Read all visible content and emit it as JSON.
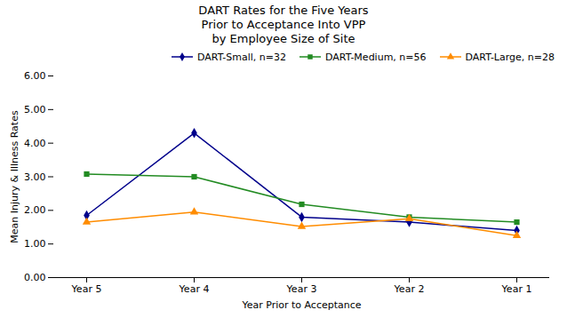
{
  "chart_data": {
    "type": "line",
    "title": [
      "DART Rates for the Five Years",
      "Prior to Acceptance Into VPP",
      "by Employee Size of Site"
    ],
    "xlabel": "Year Prior to Acceptance",
    "ylabel": "Mean Injury & Illness Rates",
    "categories": [
      "Year 5",
      "Year 4",
      "Year 3",
      "Year 2",
      "Year 1"
    ],
    "series": [
      {
        "name": "DART-Small, n=32",
        "color": "#00008B",
        "marker": "diamond",
        "values": [
          1.85,
          4.3,
          1.8,
          1.65,
          1.4
        ]
      },
      {
        "name": "DART-Medium, n=56",
        "color": "#228B22",
        "marker": "square",
        "values": [
          3.08,
          3.0,
          2.18,
          1.8,
          1.65
        ]
      },
      {
        "name": "DART-Large, n=28",
        "color": "#FF8C00",
        "marker": "triangle",
        "values": [
          1.65,
          1.95,
          1.52,
          1.75,
          1.25
        ]
      }
    ],
    "ylim": [
      0.0,
      6.0
    ],
    "yticks": [
      {
        "value": 0.0,
        "label": "0.00"
      },
      {
        "value": 1.0,
        "label": "1.00"
      },
      {
        "value": 2.0,
        "label": "2.00"
      },
      {
        "value": 3.0,
        "label": "3.00"
      },
      {
        "value": 4.0,
        "label": "4.00"
      },
      {
        "value": 5.0,
        "label": "5.00"
      },
      {
        "value": 6.0,
        "label": "6.00"
      }
    ],
    "grid": false,
    "legend": "upper right"
  }
}
